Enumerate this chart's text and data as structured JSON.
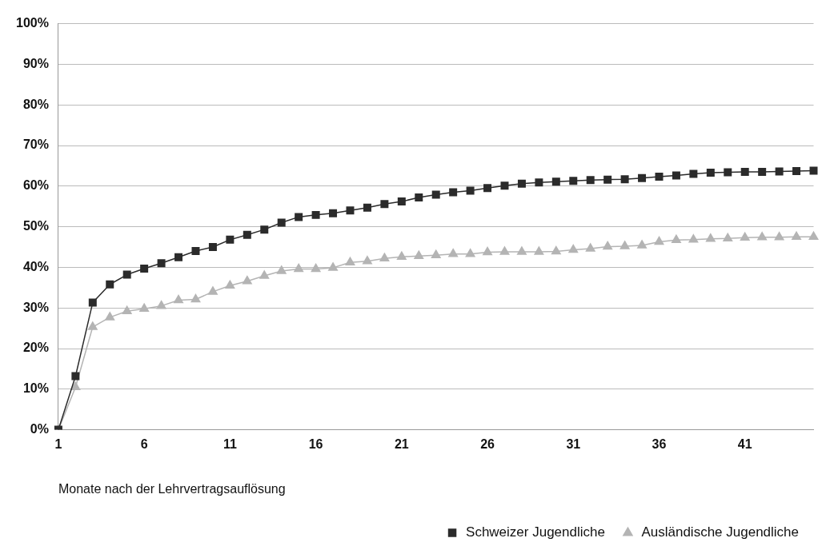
{
  "chart_data": {
    "type": "line",
    "xlabel": "Monate nach der Lehrvertragsauflösung",
    "categories": [
      "1",
      null,
      null,
      null,
      null,
      "6",
      null,
      null,
      null,
      null,
      "11",
      null,
      null,
      null,
      null,
      "16",
      null,
      null,
      null,
      null,
      "21",
      null,
      null,
      null,
      null,
      "26",
      null,
      null,
      null,
      null,
      "31",
      null,
      null,
      null,
      null,
      "36",
      null,
      null,
      null,
      null,
      "41",
      null,
      null,
      null,
      null
    ],
    "series": [
      {
        "name": "Schweizer Jugendliche",
        "color": "#2b2b2b",
        "marker": "square",
        "values": [
          0,
          13.2,
          31.3,
          35.8,
          38.2,
          39.7,
          41,
          42.5,
          44,
          45,
          46.8,
          48,
          49.3,
          51,
          52.4,
          52.9,
          53.3,
          54,
          54.7,
          55.6,
          56.2,
          57.2,
          57.9,
          58.5,
          58.9,
          59.5,
          60.1,
          60.6,
          60.9,
          61.1,
          61.3,
          61.5,
          61.6,
          61.7,
          62,
          62.3,
          62.6,
          63,
          63.3,
          63.4,
          63.5,
          63.5,
          63.6,
          63.7,
          63.8
        ]
      },
      {
        "name": "Ausländische Jugendliche",
        "color": "#b4b4b4",
        "marker": "triangle",
        "values": [
          0,
          10.5,
          25.3,
          27.7,
          29.2,
          29.8,
          30.5,
          31.9,
          32.1,
          34,
          35.5,
          36.6,
          37.9,
          39.1,
          39.6,
          39.6,
          39.9,
          41.2,
          41.5,
          42.2,
          42.6,
          42.8,
          43,
          43.3,
          43.3,
          43.7,
          43.8,
          43.8,
          43.8,
          43.9,
          44.3,
          44.6,
          45.1,
          45.2,
          45.4,
          46.3,
          46.7,
          46.8,
          47,
          47.1,
          47.3,
          47.4,
          47.4,
          47.5,
          47.5
        ]
      }
    ],
    "ylim": [
      0,
      100
    ],
    "yticks": [
      {
        "value": 0,
        "label": "0%"
      },
      {
        "value": 10,
        "label": "10%"
      },
      {
        "value": 20,
        "label": "20%"
      },
      {
        "value": 30,
        "label": "30%"
      },
      {
        "value": 40,
        "label": "40%"
      },
      {
        "value": 50,
        "label": "50%"
      },
      {
        "value": 60,
        "label": "60%"
      },
      {
        "value": 70,
        "label": "70%"
      },
      {
        "value": 80,
        "label": "80%"
      },
      {
        "value": 90,
        "label": "90%"
      },
      {
        "value": 100,
        "label": "100%"
      }
    ],
    "grid": "y",
    "legend": "bottom right",
    "line_style": "solid"
  }
}
